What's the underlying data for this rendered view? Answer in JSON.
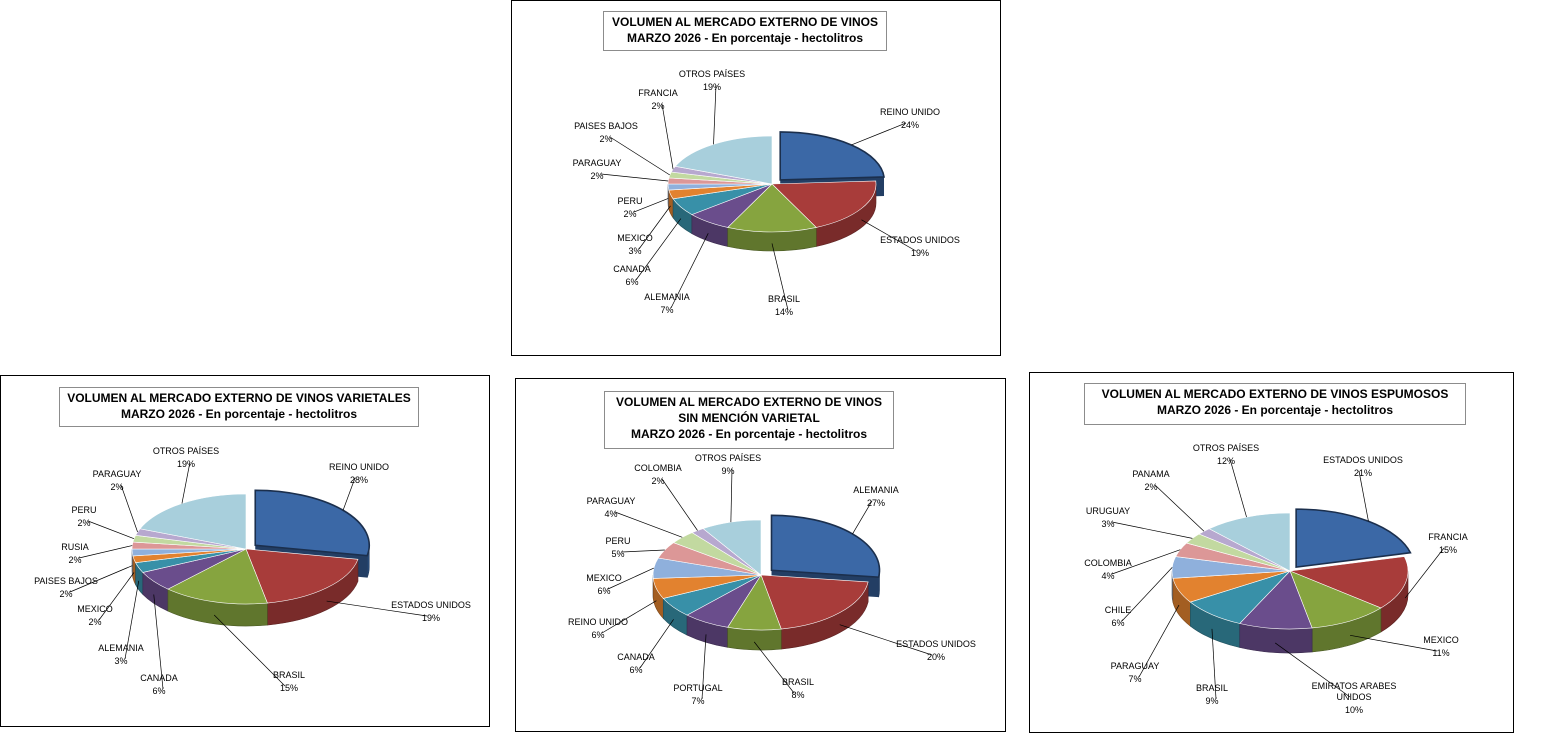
{
  "chart_data": [
    {
      "type": "pie",
      "title_lines": [
        "VOLUMEN AL MERCADO EXTERNO DE VINOS",
        "MARZO 2026 - En porcentaje - hectolitros"
      ],
      "categories": [
        "REINO UNIDO",
        "ESTADOS UNIDOS",
        "BRASIL",
        "ALEMANIA",
        "CANADA",
        "MEXICO",
        "PERU",
        "PARAGUAY",
        "PAISES BAJOS",
        "FRANCIA",
        "OTROS PAÍSES"
      ],
      "values": [
        24,
        19,
        14,
        7,
        6,
        3,
        2,
        2,
        2,
        2,
        19
      ],
      "value_labels": [
        "24%",
        "19%",
        "14%",
        "7%",
        "6%",
        "3%",
        "2%",
        "2%",
        "2%",
        "2%",
        "19%"
      ]
    },
    {
      "type": "pie",
      "title_lines": [
        "VOLUMEN AL MERCADO EXTERNO DE VINOS VARIETALES",
        "MARZO 2026 - En porcentaje - hectolitros"
      ],
      "categories": [
        "REINO UNIDO",
        "ESTADOS UNIDOS",
        "BRASIL",
        "CANADA",
        "ALEMANIA",
        "MEXICO",
        "PAISES BAJOS",
        "RUSIA",
        "PERU",
        "PARAGUAY",
        "OTROS PAÍSES"
      ],
      "values": [
        28,
        19,
        15,
        6,
        3,
        2,
        2,
        2,
        2,
        2,
        19
      ],
      "value_labels": [
        "28%",
        "19%",
        "15%",
        "6%",
        "3%",
        "2%",
        "2%",
        "2%",
        "2%",
        "2%",
        "19%"
      ]
    },
    {
      "type": "pie",
      "title_lines": [
        "VOLUMEN AL MERCADO EXTERNO DE VINOS",
        "SIN MENCIÓN VARIETAL",
        "MARZO 2026 - En porcentaje - hectolitros"
      ],
      "categories": [
        "ALEMANIA",
        "ESTADOS UNIDOS",
        "BRASIL",
        "PORTUGAL",
        "CANADA",
        "REINO UNIDO",
        "MEXICO",
        "PERU",
        "PARAGUAY",
        "COLOMBIA",
        "OTROS PAÍSES"
      ],
      "values": [
        27,
        20,
        8,
        7,
        6,
        6,
        6,
        5,
        4,
        2,
        9
      ],
      "value_labels": [
        "27%",
        "20%",
        "8%",
        "7%",
        "6%",
        "6%",
        "6%",
        "5%",
        "4%",
        "2%",
        "9%"
      ]
    },
    {
      "type": "pie",
      "title_lines": [
        "VOLUMEN AL MERCADO EXTERNO DE VINOS ESPUMOSOS",
        "MARZO 2026 - En porcentaje - hectolitros"
      ],
      "categories": [
        "ESTADOS UNIDOS",
        "FRANCIA",
        "MEXICO",
        "EMIRATOS ARABES UNIDOS",
        "BRASIL",
        "PARAGUAY",
        "CHILE",
        "COLOMBIA",
        "URUGUAY",
        "PANAMA",
        "OTROS PAÍSES"
      ],
      "values": [
        21,
        15,
        11,
        10,
        9,
        7,
        6,
        4,
        3,
        2,
        12
      ],
      "value_labels": [
        "21%",
        "15%",
        "11%",
        "10%",
        "9%",
        "7%",
        "6%",
        "4%",
        "3%",
        "2%",
        "12%"
      ]
    }
  ],
  "colors": [
    "#3b68a6",
    "#a83c3a",
    "#86a43f",
    "#6a4d8c",
    "#3890a8",
    "#e2822f",
    "#8fb0dc",
    "#dc9797",
    "#c2d9a0",
    "#b7a8cf",
    "#a8cfdc"
  ]
}
